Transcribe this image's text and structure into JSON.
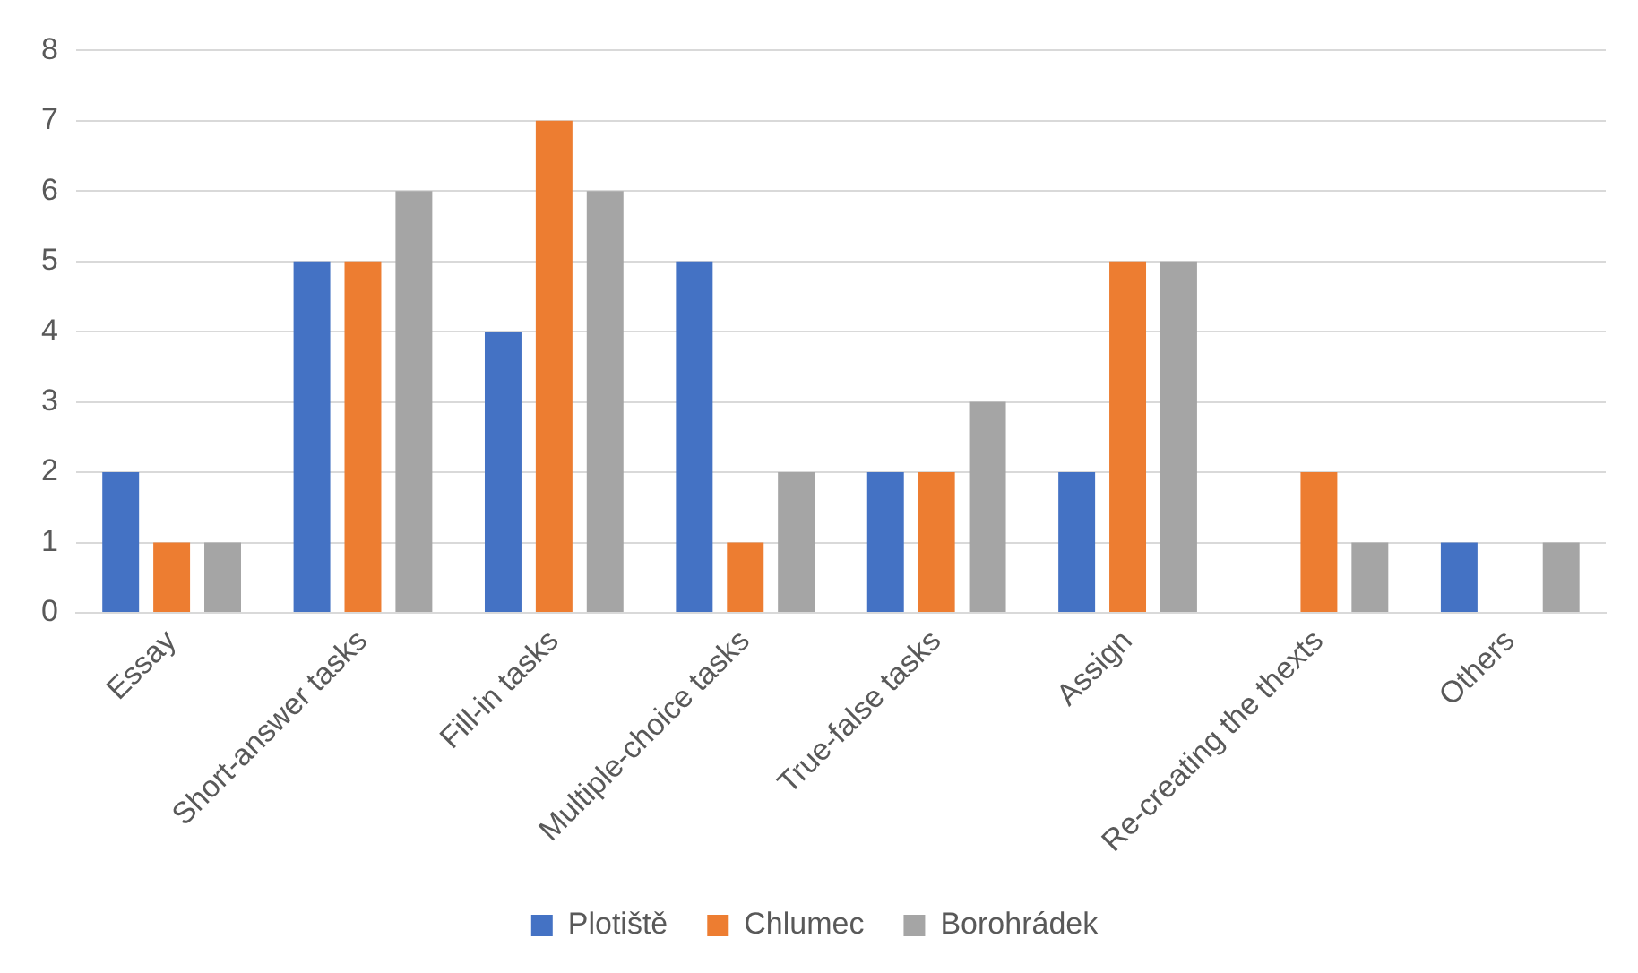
{
  "chart_data": {
    "type": "bar",
    "categories": [
      "Essay",
      "Short-answer tasks",
      "Fill-in tasks",
      "Multiple-choice tasks",
      "True-false tasks",
      "Assign",
      "Re-creating the thexts",
      "Others"
    ],
    "series": [
      {
        "name": "Plotiště",
        "color": "#4472c4",
        "values": [
          2,
          5,
          4,
          5,
          2,
          2,
          0,
          1
        ]
      },
      {
        "name": "Chlumec",
        "color": "#ed7d31",
        "values": [
          1,
          5,
          7,
          1,
          2,
          5,
          2,
          0
        ]
      },
      {
        "name": "Borohrádek",
        "color": "#a5a5a5",
        "values": [
          1,
          6,
          6,
          2,
          3,
          5,
          1,
          1
        ]
      }
    ],
    "ylim": [
      0,
      8
    ],
    "yticks": [
      0,
      1,
      2,
      3,
      4,
      5,
      6,
      7,
      8
    ],
    "grid": "y",
    "legend": "bottom"
  }
}
